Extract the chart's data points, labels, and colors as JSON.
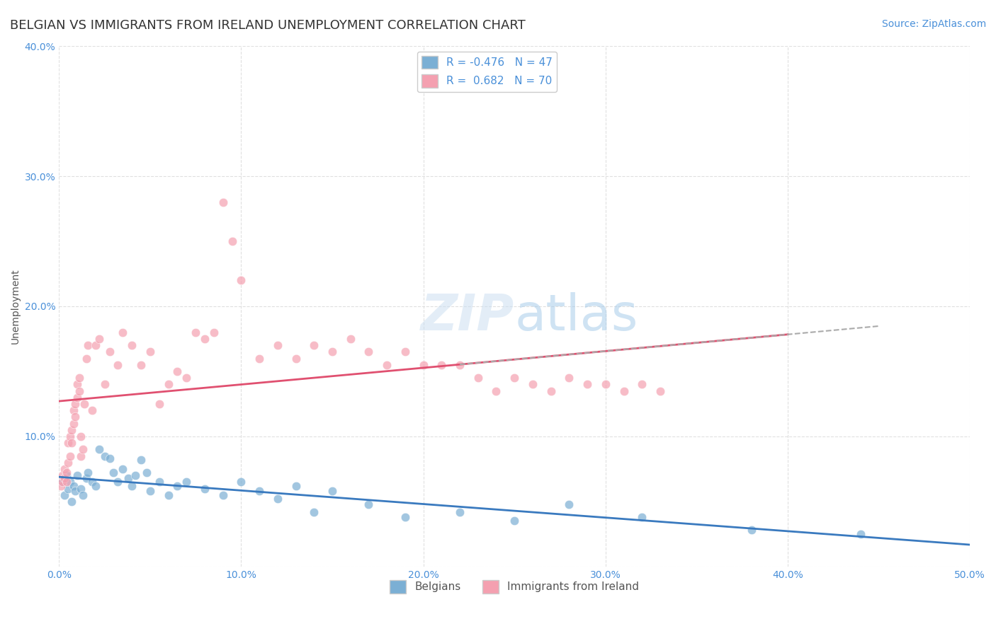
{
  "title": "BELGIAN VS IMMIGRANTS FROM IRELAND UNEMPLOYMENT CORRELATION CHART",
  "source": "Source: ZipAtlas.com",
  "ylabel": "Unemployment",
  "xlabel": "",
  "xlim": [
    0,
    0.5
  ],
  "ylim": [
    0,
    0.4
  ],
  "xticks": [
    0.0,
    0.1,
    0.2,
    0.3,
    0.4,
    0.5
  ],
  "yticks": [
    0.0,
    0.1,
    0.2,
    0.3,
    0.4
  ],
  "xtick_labels": [
    "0.0%",
    "10.0%",
    "20.0%",
    "30.0%",
    "40.0%",
    "50.0%"
  ],
  "ytick_labels": [
    "",
    "10.0%",
    "20.0%",
    "30.0%",
    "40.0%"
  ],
  "legend_labels": [
    "Belgians",
    "Immigrants from Ireland"
  ],
  "R_blue": -0.476,
  "N_blue": 47,
  "R_pink": 0.682,
  "N_pink": 70,
  "blue_color": "#7bafd4",
  "pink_color": "#f4a0b0",
  "blue_line_color": "#3a7abf",
  "pink_line_color": "#e05070",
  "watermark": "ZIPatlas",
  "background_color": "#ffffff",
  "grid_color": "#dddddd",
  "blue_scatter_x": [
    0.002,
    0.003,
    0.004,
    0.005,
    0.006,
    0.007,
    0.008,
    0.009,
    0.01,
    0.012,
    0.013,
    0.015,
    0.016,
    0.018,
    0.02,
    0.022,
    0.025,
    0.028,
    0.03,
    0.032,
    0.035,
    0.038,
    0.04,
    0.042,
    0.045,
    0.048,
    0.05,
    0.055,
    0.06,
    0.065,
    0.07,
    0.08,
    0.09,
    0.1,
    0.11,
    0.12,
    0.13,
    0.14,
    0.15,
    0.17,
    0.19,
    0.22,
    0.25,
    0.28,
    0.32,
    0.38,
    0.44
  ],
  "blue_scatter_y": [
    0.065,
    0.055,
    0.07,
    0.06,
    0.065,
    0.05,
    0.062,
    0.058,
    0.07,
    0.06,
    0.055,
    0.068,
    0.072,
    0.065,
    0.062,
    0.09,
    0.085,
    0.083,
    0.072,
    0.065,
    0.075,
    0.068,
    0.062,
    0.07,
    0.082,
    0.072,
    0.058,
    0.065,
    0.055,
    0.062,
    0.065,
    0.06,
    0.055,
    0.065,
    0.058,
    0.052,
    0.062,
    0.042,
    0.058,
    0.048,
    0.038,
    0.042,
    0.035,
    0.048,
    0.038,
    0.028,
    0.025
  ],
  "pink_scatter_x": [
    0.001,
    0.002,
    0.002,
    0.003,
    0.003,
    0.004,
    0.004,
    0.005,
    0.005,
    0.006,
    0.006,
    0.007,
    0.007,
    0.008,
    0.008,
    0.009,
    0.009,
    0.01,
    0.01,
    0.011,
    0.011,
    0.012,
    0.012,
    0.013,
    0.014,
    0.015,
    0.016,
    0.018,
    0.02,
    0.022,
    0.025,
    0.028,
    0.032,
    0.035,
    0.04,
    0.045,
    0.05,
    0.055,
    0.06,
    0.065,
    0.07,
    0.075,
    0.08,
    0.085,
    0.09,
    0.095,
    0.1,
    0.11,
    0.12,
    0.13,
    0.14,
    0.15,
    0.16,
    0.17,
    0.18,
    0.19,
    0.2,
    0.21,
    0.22,
    0.23,
    0.24,
    0.25,
    0.26,
    0.27,
    0.28,
    0.29,
    0.3,
    0.31,
    0.32,
    0.33
  ],
  "pink_scatter_y": [
    0.062,
    0.065,
    0.07,
    0.075,
    0.068,
    0.072,
    0.065,
    0.08,
    0.095,
    0.085,
    0.1,
    0.105,
    0.095,
    0.11,
    0.12,
    0.115,
    0.125,
    0.13,
    0.14,
    0.135,
    0.145,
    0.1,
    0.085,
    0.09,
    0.125,
    0.16,
    0.17,
    0.12,
    0.17,
    0.175,
    0.14,
    0.165,
    0.155,
    0.18,
    0.17,
    0.155,
    0.165,
    0.125,
    0.14,
    0.15,
    0.145,
    0.18,
    0.175,
    0.18,
    0.28,
    0.25,
    0.22,
    0.16,
    0.17,
    0.16,
    0.17,
    0.165,
    0.175,
    0.165,
    0.155,
    0.165,
    0.155,
    0.155,
    0.155,
    0.145,
    0.135,
    0.145,
    0.14,
    0.135,
    0.145,
    0.14,
    0.14,
    0.135,
    0.14,
    0.135
  ],
  "title_fontsize": 13,
  "axis_label_fontsize": 10,
  "tick_fontsize": 10,
  "legend_fontsize": 11,
  "source_fontsize": 10
}
